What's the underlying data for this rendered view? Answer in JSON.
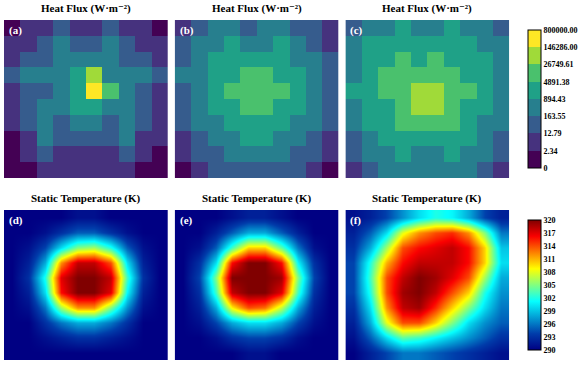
{
  "chart_data": [
    {
      "type": "heatmap",
      "title": "Heat Flux (W·m⁻²)",
      "panel": "(a)",
      "tick_labels": false,
      "z": [
        [
          1,
          5,
          5,
          50,
          5,
          5,
          50,
          5,
          5,
          1
        ],
        [
          5,
          5,
          50,
          400,
          50,
          50,
          400,
          50,
          5,
          5
        ],
        [
          5,
          50,
          50,
          400,
          400,
          400,
          400,
          50,
          50,
          5
        ],
        [
          50,
          400,
          400,
          400,
          2000,
          50000,
          400,
          400,
          400,
          50
        ],
        [
          5,
          50,
          50,
          400,
          2000,
          300000,
          10000,
          400,
          50,
          5
        ],
        [
          5,
          50,
          400,
          400,
          2000,
          2000,
          400,
          400,
          50,
          5
        ],
        [
          5,
          50,
          400,
          50,
          400,
          400,
          50,
          400,
          50,
          5
        ],
        [
          1,
          5,
          400,
          50,
          50,
          50,
          50,
          400,
          5,
          5
        ],
        [
          1,
          5,
          50,
          5,
          5,
          5,
          5,
          50,
          5,
          1
        ],
        [
          1,
          1,
          5,
          5,
          5,
          5,
          5,
          5,
          1,
          1
        ]
      ]
    },
    {
      "type": "heatmap",
      "title": "Heat Flux (W·m⁻²)",
      "panel": "(b)",
      "tick_labels": false,
      "z": [
        [
          5,
          50,
          400,
          400,
          50,
          400,
          400,
          50,
          50,
          5
        ],
        [
          50,
          400,
          400,
          2000,
          400,
          400,
          2000,
          400,
          50,
          5
        ],
        [
          50,
          400,
          2000,
          2000,
          2000,
          2000,
          2000,
          400,
          400,
          50
        ],
        [
          400,
          400,
          2000,
          2000,
          10000,
          10000,
          2000,
          2000,
          400,
          50
        ],
        [
          50,
          400,
          2000,
          10000,
          10000,
          10000,
          10000,
          2000,
          400,
          50
        ],
        [
          50,
          400,
          2000,
          2000,
          10000,
          10000,
          2000,
          2000,
          400,
          50
        ],
        [
          50,
          400,
          400,
          2000,
          2000,
          2000,
          2000,
          400,
          400,
          50
        ],
        [
          5,
          50,
          400,
          400,
          2000,
          2000,
          400,
          400,
          50,
          5
        ],
        [
          5,
          50,
          50,
          400,
          400,
          400,
          400,
          50,
          50,
          5
        ],
        [
          1,
          5,
          50,
          50,
          50,
          50,
          50,
          50,
          5,
          1
        ]
      ]
    },
    {
      "type": "heatmap",
      "title": "Heat Flux (W·m⁻²)",
      "panel": "(c)",
      "tick_labels": false,
      "z": [
        [
          50,
          400,
          400,
          2000,
          400,
          400,
          2000,
          400,
          400,
          50
        ],
        [
          400,
          2000,
          2000,
          2000,
          2000,
          2000,
          2000,
          2000,
          400,
          400
        ],
        [
          400,
          2000,
          2000,
          10000,
          2000,
          10000,
          2000,
          2000,
          2000,
          400
        ],
        [
          400,
          2000,
          10000,
          10000,
          10000,
          10000,
          10000,
          2000,
          2000,
          400
        ],
        [
          2000,
          2000,
          10000,
          10000,
          50000,
          50000,
          10000,
          10000,
          2000,
          400
        ],
        [
          400,
          2000,
          2000,
          10000,
          50000,
          50000,
          10000,
          2000,
          2000,
          400
        ],
        [
          400,
          2000,
          2000,
          10000,
          10000,
          10000,
          10000,
          2000,
          400,
          400
        ],
        [
          50,
          400,
          2000,
          2000,
          2000,
          2000,
          2000,
          2000,
          400,
          50
        ],
        [
          50,
          400,
          400,
          2000,
          400,
          400,
          2000,
          400,
          400,
          50
        ],
        [
          5,
          50,
          400,
          400,
          400,
          400,
          400,
          400,
          50,
          5
        ]
      ],
      "colors": [
        "#440154",
        "#46327e",
        "#365c8d",
        "#277f8e",
        "#1fa187",
        "#4ac16d",
        "#a0da39",
        "#fde725"
      ],
      "colorbar": {
        "range": [
          0,
          800000
        ],
        "ticks": [
          0,
          {
            "value": 2.34,
            "label": "2.34"
          },
          {
            "value": 12.79,
            "label": "12.79"
          },
          {
            "value": 163.55,
            "label": "163.55"
          },
          {
            "value": 894.43,
            "label": "894.43"
          },
          {
            "value": 4891.38,
            "label": "4891.38"
          },
          {
            "value": 26749.61,
            "label": "26749.61"
          },
          {
            "value": 146286,
            "label": "146286.00"
          },
          {
            "value": 800000,
            "label": "800000.00"
          }
        ]
      }
    },
    {
      "type": "heatmap",
      "title": "Static Temperature (K)",
      "panel": "(d)",
      "tick_labels": false,
      "z": [
        [
          290,
          290,
          290,
          290,
          291,
          291,
          290,
          290,
          290,
          290
        ],
        [
          290,
          290,
          291,
          293,
          295,
          295,
          293,
          291,
          290,
          290
        ],
        [
          290,
          291,
          294,
          300,
          305,
          306,
          302,
          295,
          291,
          290
        ],
        [
          290,
          292,
          298,
          312,
          318,
          318,
          314,
          300,
          292,
          290
        ],
        [
          290,
          293,
          302,
          317,
          320,
          320,
          318,
          303,
          293,
          290
        ],
        [
          290,
          292,
          300,
          316,
          320,
          320,
          317,
          301,
          292,
          290
        ],
        [
          290,
          291,
          296,
          306,
          312,
          312,
          305,
          297,
          291,
          290
        ],
        [
          290,
          290,
          293,
          296,
          298,
          298,
          296,
          293,
          290,
          290
        ],
        [
          290,
          290,
          291,
          292,
          293,
          293,
          292,
          291,
          290,
          290
        ],
        [
          290,
          290,
          290,
          290,
          290,
          290,
          290,
          290,
          290,
          290
        ]
      ]
    },
    {
      "type": "heatmap",
      "title": "Static Temperature (K)",
      "panel": "(e)",
      "tick_labels": false,
      "z": [
        [
          290,
          290,
          290,
          291,
          292,
          292,
          291,
          290,
          290,
          290
        ],
        [
          290,
          290,
          292,
          295,
          298,
          298,
          295,
          292,
          290,
          290
        ],
        [
          290,
          291,
          295,
          303,
          310,
          310,
          304,
          296,
          291,
          290
        ],
        [
          290,
          293,
          300,
          316,
          320,
          320,
          316,
          301,
          293,
          290
        ],
        [
          290,
          294,
          305,
          320,
          320,
          320,
          319,
          305,
          294,
          290
        ],
        [
          290,
          293,
          303,
          318,
          320,
          320,
          317,
          303,
          293,
          290
        ],
        [
          290,
          292,
          298,
          309,
          314,
          313,
          307,
          298,
          292,
          290
        ],
        [
          290,
          291,
          294,
          298,
          300,
          300,
          298,
          294,
          291,
          290
        ],
        [
          290,
          290,
          291,
          293,
          294,
          294,
          293,
          291,
          290,
          290
        ],
        [
          290,
          290,
          290,
          290,
          291,
          291,
          290,
          290,
          290,
          290
        ]
      ]
    },
    {
      "type": "heatmap",
      "title": "Static Temperature (K)",
      "panel": "(f)",
      "tick_labels": false,
      "z": [
        [
          291,
          292,
          294,
          297,
          300,
          302,
          301,
          298,
          294,
          292
        ],
        [
          292,
          295,
          300,
          308,
          312,
          314,
          315,
          312,
          305,
          296
        ],
        [
          293,
          298,
          306,
          314,
          316,
          317,
          318,
          316,
          310,
          299
        ],
        [
          294,
          302,
          311,
          316,
          318,
          318,
          318,
          316,
          310,
          300
        ],
        [
          294,
          303,
          314,
          318,
          320,
          319,
          317,
          314,
          306,
          298
        ],
        [
          294,
          302,
          314,
          319,
          320,
          318,
          314,
          310,
          302,
          297
        ],
        [
          293,
          300,
          312,
          318,
          319,
          315,
          310,
          305,
          300,
          296
        ],
        [
          292,
          298,
          308,
          314,
          314,
          310,
          305,
          300,
          297,
          295
        ],
        [
          291,
          295,
          300,
          304,
          303,
          301,
          299,
          297,
          295,
          293
        ],
        [
          290,
          292,
          294,
          296,
          296,
          295,
          294,
          293,
          292,
          291
        ]
      ],
      "colorbar": {
        "range": [
          290,
          320
        ],
        "ticks": [
          290,
          293,
          296,
          299,
          302,
          305,
          308,
          311,
          314,
          317,
          320
        ]
      }
    }
  ]
}
